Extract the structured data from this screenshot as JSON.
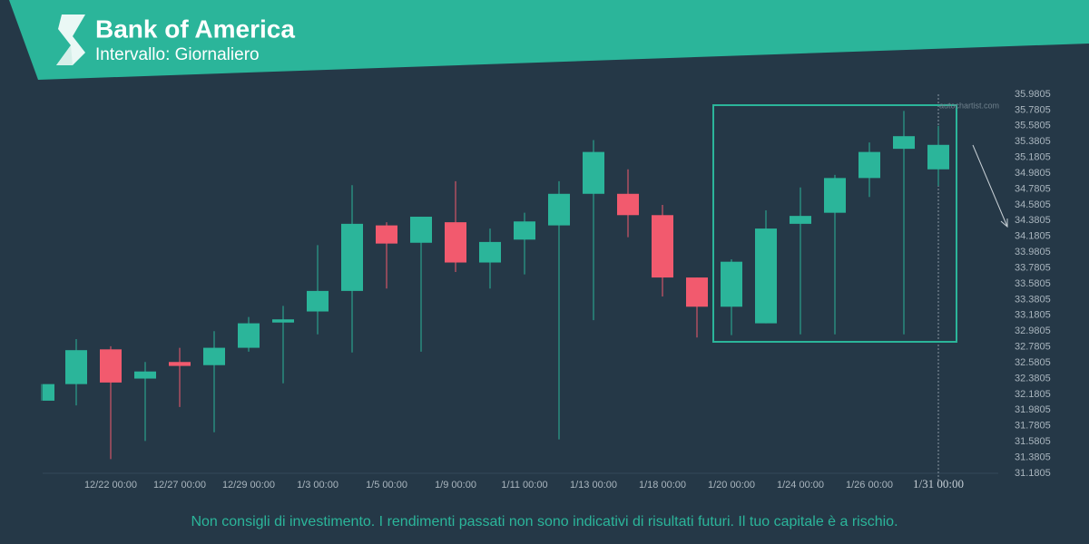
{
  "header": {
    "title": "Bank of America",
    "subtitle": "Intervallo: Giornaliero"
  },
  "chart_data": {
    "type": "candlestick",
    "categories": [
      null,
      null,
      "12/22 00:00",
      null,
      "12/27 00:00",
      null,
      "12/29 00:00",
      null,
      "1/3 00:00",
      null,
      "1/5 00:00",
      null,
      "1/9 00:00",
      null,
      "1/11 00:00",
      null,
      "1/13 00:00",
      null,
      "1/18 00:00",
      null,
      "1/20 00:00",
      null,
      "1/24 00:00",
      null,
      "1/26 00:00",
      null,
      "1/31 00:00"
    ],
    "open": [
      32.1,
      32.31,
      32.75,
      32.38,
      32.59,
      32.55,
      32.77,
      33.09,
      33.23,
      33.49,
      34.32,
      34.1,
      34.36,
      33.85,
      34.14,
      34.32,
      34.72,
      34.72,
      34.45,
      33.66,
      33.29,
      33.08,
      34.34,
      34.48,
      34.92,
      35.29,
      35.03
    ],
    "high": [
      32.31,
      32.88,
      32.79,
      32.59,
      32.77,
      32.98,
      33.16,
      33.3,
      34.07,
      34.83,
      34.36,
      34.43,
      34.88,
      34.28,
      34.48,
      34.88,
      35.4,
      35.03,
      34.58,
      33.66,
      33.89,
      34.51,
      34.8,
      34.96,
      35.37,
      35.77,
      35.58
    ],
    "low": [
      32.1,
      32.04,
      31.36,
      31.59,
      32.02,
      31.7,
      32.72,
      32.32,
      32.94,
      32.71,
      33.52,
      32.72,
      33.73,
      33.52,
      33.7,
      31.61,
      33.12,
      34.17,
      33.42,
      32.9,
      32.93,
      33.08,
      32.94,
      32.94,
      34.68,
      32.94,
      34.82
    ],
    "close": [
      32.31,
      32.74,
      32.33,
      32.47,
      32.54,
      32.77,
      33.08,
      33.13,
      33.49,
      34.34,
      34.09,
      34.43,
      33.85,
      34.11,
      34.37,
      34.72,
      35.25,
      34.45,
      33.66,
      33.29,
      33.86,
      34.28,
      34.44,
      34.92,
      35.25,
      35.45,
      35.34
    ],
    "up_color": "#2bb59a",
    "down_color": "#f25a6e",
    "ylim": [
      31.1805,
      35.9805
    ],
    "yticks": [
      31.1805,
      31.3805,
      31.5805,
      31.7805,
      31.9805,
      32.1805,
      32.3805,
      32.5805,
      32.7805,
      32.9805,
      33.1805,
      33.3805,
      33.5805,
      33.7805,
      33.9805,
      34.1805,
      34.3805,
      34.5805,
      34.7805,
      34.9805,
      35.1805,
      35.3805,
      35.5805,
      35.7805,
      35.9805
    ],
    "watermark": "autochartist.com"
  },
  "footer": {
    "disclaimer": "Non consigli di investimento. I rendimenti passati non sono indicativi di risultati futuri. Il tuo capitale è a rischio."
  }
}
